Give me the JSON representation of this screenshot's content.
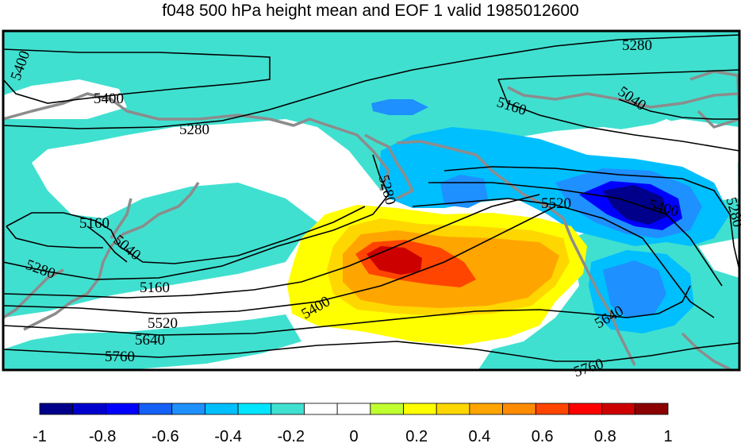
{
  "title": "f048 500 hPa height mean and EOF 1 valid 1985012600",
  "contour_labels": [
    {
      "id": "c5400a",
      "text": "5400"
    },
    {
      "id": "c5400b",
      "text": "5400"
    },
    {
      "id": "c5280a",
      "text": "5280"
    },
    {
      "id": "c5280b",
      "text": "5280"
    },
    {
      "id": "c5160a",
      "text": "5160"
    },
    {
      "id": "c5040a",
      "text": "5040"
    },
    {
      "id": "c5280c",
      "text": "5280"
    },
    {
      "id": "c5520a",
      "text": "5520"
    },
    {
      "id": "c5400c",
      "text": "5400"
    },
    {
      "id": "c5280d",
      "text": "5280"
    },
    {
      "id": "c5160b",
      "text": "5160"
    },
    {
      "id": "c5040b",
      "text": "5040"
    },
    {
      "id": "c5280e",
      "text": "5280"
    },
    {
      "id": "c5160c",
      "text": "5160"
    },
    {
      "id": "c5400d",
      "text": "5400"
    },
    {
      "id": "c5520b",
      "text": "5520"
    },
    {
      "id": "c5640a",
      "text": "5640"
    },
    {
      "id": "c5760a",
      "text": "5760"
    },
    {
      "id": "c5640b",
      "text": "5640"
    },
    {
      "id": "c5760b",
      "text": "5760"
    }
  ],
  "colorbar": {
    "colors": [
      "#00008b",
      "#0000cd",
      "#0000ff",
      "#1560f5",
      "#1e90ff",
      "#00bfff",
      "#00e5ff",
      "#40e0d0",
      "#ffffff",
      "#ffffff",
      "#c0ff30",
      "#ffff00",
      "#ffd700",
      "#ffa500",
      "#ff8c00",
      "#ff4500",
      "#ff0000",
      "#cd0000",
      "#8b0000"
    ],
    "ticks": [
      "-1",
      "-0.8",
      "-0.6",
      "-0.4",
      "-0.2",
      "0",
      "0.2",
      "0.4",
      "0.6",
      "0.8",
      "1"
    ]
  },
  "colors": {
    "coastline": "#8c8c8c",
    "contour": "#000000",
    "frame": "#000000"
  }
}
